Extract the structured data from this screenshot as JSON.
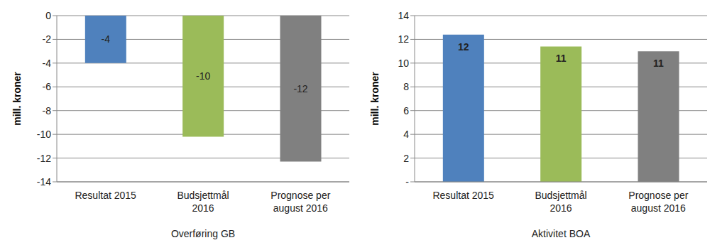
{
  "chart_data": [
    {
      "type": "bar",
      "x_label": "Overføring GB",
      "y_label": "mill. kroner",
      "categories": [
        "Resultat 2015",
        "Budsjettmål 2016",
        "Prognose per august 2016"
      ],
      "values": [
        -4,
        -10.2,
        -12.3
      ],
      "value_labels": [
        "-4",
        "-10",
        "-12"
      ],
      "colors": [
        "#4f81bd",
        "#9bbb59",
        "#808080"
      ],
      "ylim": [
        -14,
        0
      ],
      "yticks": [
        -14,
        -12,
        -10,
        -8,
        -6,
        -4,
        -2,
        0
      ],
      "grid": true,
      "data_labels": true
    },
    {
      "type": "bar",
      "x_label": "Aktivitet BOA",
      "y_label": "mill. kroner",
      "categories": [
        "Resultat 2015",
        "Budsjettmål 2016",
        "Prognose per august 2016"
      ],
      "values": [
        12.4,
        11.4,
        11.0
      ],
      "value_labels": [
        "12",
        "11",
        "11"
      ],
      "colors": [
        "#4f81bd",
        "#9bbb59",
        "#808080"
      ],
      "ylim": [
        0,
        14
      ],
      "yticks": [
        {
          "value": 0,
          "label": "-"
        },
        2,
        4,
        6,
        8,
        10,
        12,
        14
      ],
      "grid": true,
      "data_labels": true
    }
  ]
}
